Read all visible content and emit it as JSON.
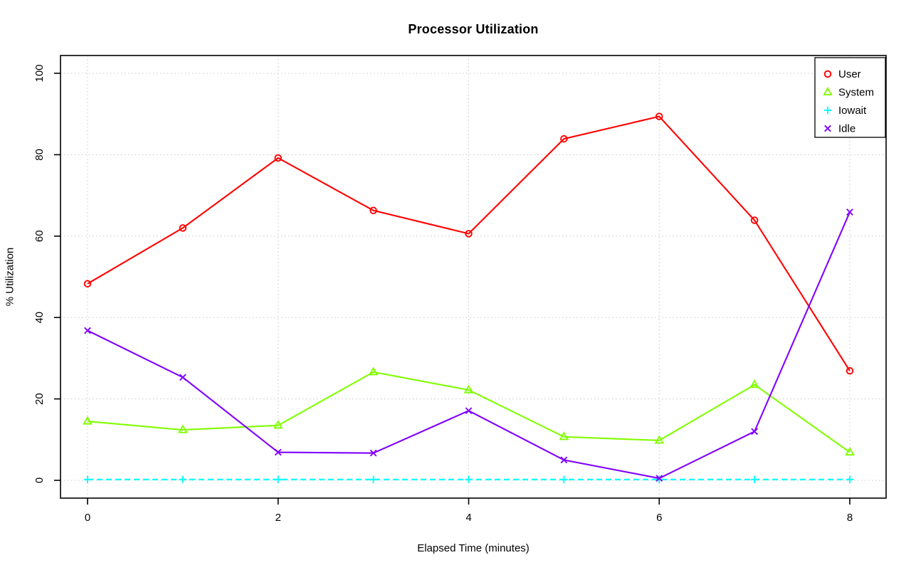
{
  "chart_data": {
    "type": "line",
    "title": "Processor Utilization",
    "xlabel": "Elapsed Time (minutes)",
    "ylabel": "% Utilization",
    "x": [
      0,
      1,
      2,
      3,
      4,
      5,
      6,
      7,
      8
    ],
    "xlim": [
      0,
      8
    ],
    "ylim": [
      0,
      100
    ],
    "xticks": [
      0,
      2,
      4,
      6,
      8
    ],
    "yticks": [
      0,
      20,
      40,
      60,
      80,
      100
    ],
    "grid": "dotted both axes at ticks",
    "grid_color": "#c8c8c8",
    "legend_position": "top-right",
    "series": [
      {
        "name": "User",
        "color": "#FF0000",
        "marker": "circle",
        "line": "solid",
        "values": [
          48.3,
          62.0,
          79.2,
          66.3,
          60.6,
          83.9,
          89.4,
          63.9,
          26.9
        ]
      },
      {
        "name": "System",
        "color": "#80FF00",
        "marker": "triangle",
        "line": "solid",
        "values": [
          14.5,
          12.4,
          13.5,
          26.6,
          22.2,
          10.7,
          9.8,
          23.5,
          6.9
        ]
      },
      {
        "name": "Iowait",
        "color": "#00FFFF",
        "marker": "plus",
        "line": "dashed",
        "values": [
          0.2,
          0.2,
          0.2,
          0.2,
          0.2,
          0.2,
          0.2,
          0.2,
          0.2
        ]
      },
      {
        "name": "Idle",
        "color": "#8000FF",
        "marker": "x",
        "line": "solid",
        "values": [
          36.8,
          25.3,
          6.9,
          6.7,
          17.1,
          5.0,
          0.5,
          12.0,
          65.9
        ]
      }
    ]
  }
}
